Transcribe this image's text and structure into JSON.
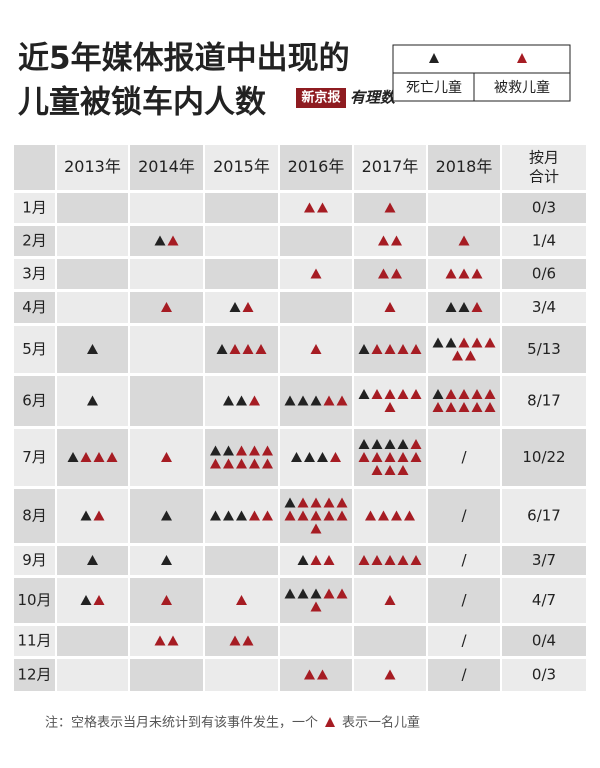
{
  "title": [
    "近5年媒体报道中出现的",
    "儿童被锁车内人数"
  ],
  "legend": {
    "dead": "死亡儿童",
    "rescued": "被救儿童"
  },
  "logo": {
    "brand": "新京报",
    "column": "有理数"
  },
  "table": {
    "corner": null,
    "columns": [
      "2013年",
      "2014年",
      "2015年",
      "2016年",
      "2017年",
      "2018年"
    ],
    "total_header": [
      "按月",
      "合计"
    ],
    "rows": [
      {
        "month": "1月",
        "cells": [
          null,
          null,
          null,
          {
            "dead": 0,
            "rescued": 2
          },
          {
            "dead": 0,
            "rescued": 1
          },
          null
        ],
        "total": "0/3"
      },
      {
        "month": "2月",
        "cells": [
          null,
          {
            "dead": 1,
            "rescued": 1
          },
          null,
          null,
          {
            "dead": 0,
            "rescued": 2
          },
          {
            "dead": 0,
            "rescued": 1
          }
        ],
        "total": "1/4"
      },
      {
        "month": "3月",
        "cells": [
          null,
          null,
          null,
          {
            "dead": 0,
            "rescued": 1
          },
          {
            "dead": 0,
            "rescued": 2
          },
          {
            "dead": 0,
            "rescued": 3
          }
        ],
        "total": "0/6"
      },
      {
        "month": "4月",
        "cells": [
          null,
          {
            "dead": 0,
            "rescued": 1
          },
          {
            "dead": 1,
            "rescued": 1
          },
          null,
          {
            "dead": 0,
            "rescued": 1
          },
          {
            "dead": 2,
            "rescued": 1
          }
        ],
        "total": "3/4"
      },
      {
        "month": "5月",
        "cells": [
          {
            "dead": 1,
            "rescued": 0
          },
          null,
          {
            "dead": 1,
            "rescued": 3
          },
          {
            "dead": 0,
            "rescued": 1
          },
          {
            "dead": 1,
            "rescued": 4
          },
          {
            "dead": 2,
            "rescued": 5
          }
        ],
        "total": "5/13"
      },
      {
        "month": "6月",
        "cells": [
          {
            "dead": 1,
            "rescued": 0
          },
          null,
          {
            "dead": 2,
            "rescued": 1
          },
          {
            "dead": 3,
            "rescued": 2
          },
          {
            "dead": 1,
            "rescued": 5
          },
          {
            "dead": 1,
            "rescued": 9
          }
        ],
        "total": "8/17"
      },
      {
        "month": "7月",
        "cells": [
          {
            "dead": 1,
            "rescued": 3
          },
          {
            "dead": 0,
            "rescued": 1
          },
          {
            "dead": 2,
            "rescued": 8
          },
          {
            "dead": 3,
            "rescued": 1
          },
          {
            "dead": 4,
            "rescued": 9
          },
          "/"
        ],
        "total": "10/22"
      },
      {
        "month": "8月",
        "cells": [
          {
            "dead": 1,
            "rescued": 1
          },
          {
            "dead": 1,
            "rescued": 0
          },
          {
            "dead": 3,
            "rescued": 2
          },
          {
            "dead": 1,
            "rescued": 10
          },
          {
            "dead": 0,
            "rescued": 4
          },
          "/"
        ],
        "total": "6/17"
      },
      {
        "month": "9月",
        "cells": [
          {
            "dead": 1,
            "rescued": 0
          },
          {
            "dead": 1,
            "rescued": 0
          },
          null,
          {
            "dead": 1,
            "rescued": 2
          },
          {
            "dead": 0,
            "rescued": 5
          },
          "/"
        ],
        "total": "3/7"
      },
      {
        "month": "10月",
        "cells": [
          {
            "dead": 1,
            "rescued": 1
          },
          {
            "dead": 0,
            "rescued": 1
          },
          {
            "dead": 0,
            "rescued": 1
          },
          {
            "dead": 3,
            "rescued": 3
          },
          {
            "dead": 0,
            "rescued": 1
          },
          "/"
        ],
        "total": "4/7"
      },
      {
        "month": "11月",
        "cells": [
          null,
          {
            "dead": 0,
            "rescued": 2
          },
          {
            "dead": 0,
            "rescued": 2
          },
          null,
          null,
          "/"
        ],
        "total": "0/4"
      },
      {
        "month": "12月",
        "cells": [
          null,
          null,
          null,
          {
            "dead": 0,
            "rescued": 2
          },
          {
            "dead": 0,
            "rescued": 1
          },
          "/"
        ],
        "total": "0/3"
      }
    ]
  },
  "footnote": {
    "before": "注：空格表示当月未统计到有该事件发生，一个",
    "after": "表示一名儿童"
  }
}
